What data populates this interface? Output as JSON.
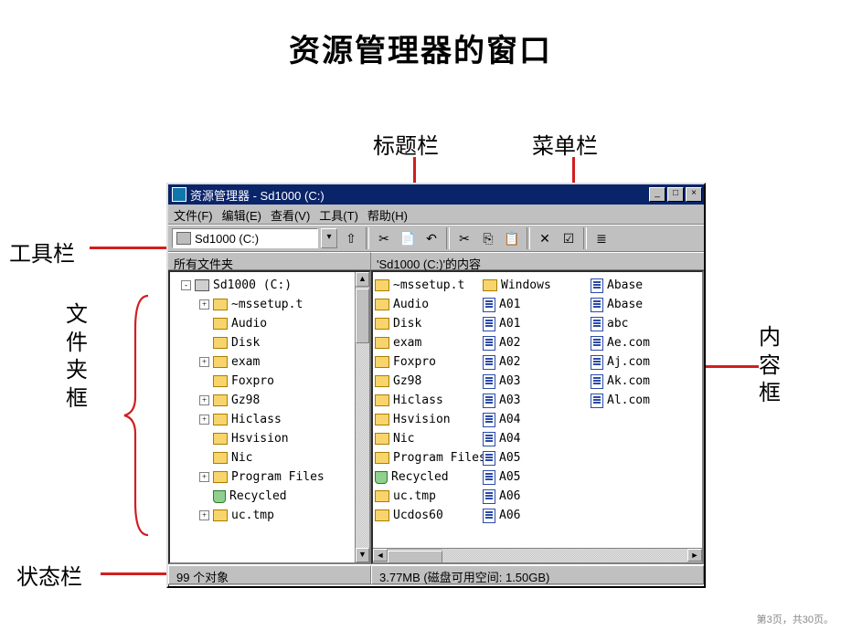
{
  "slide": {
    "title": "资源管理器的窗口",
    "footer": "第3页，共30页。"
  },
  "callouts": {
    "titlebar": "标题栏",
    "menubar": "菜单栏",
    "toolbar": "工具栏",
    "treepane": "文\n件\n夹\n框",
    "listpane": "内\n容\n框",
    "statusbar": "状态栏"
  },
  "window": {
    "title": "资源管理器 - Sd1000 (C:)",
    "sysbuttons": {
      "min": "_",
      "max": "□",
      "close": "×"
    },
    "menus": [
      "文件(F)",
      "编辑(E)",
      "查看(V)",
      "工具(T)",
      "帮助(H)"
    ],
    "address": "Sd1000 (C:)",
    "toolbar_icons": [
      "up",
      "sep",
      "cut0",
      "paste0",
      "undo0",
      "sep",
      "cut",
      "copy",
      "paste",
      "sep",
      "delete",
      "properties",
      "sep",
      "views"
    ],
    "pane_left_header": "所有文件夹",
    "pane_right_header": "'Sd1000 (C:)'的内容",
    "tree": [
      {
        "depth": 0,
        "pm": "-",
        "icon": "drive",
        "label": "Sd1000 (C:)"
      },
      {
        "depth": 1,
        "pm": "+",
        "icon": "folder",
        "label": "~mssetup.t"
      },
      {
        "depth": 1,
        "pm": "",
        "icon": "folder",
        "label": "Audio"
      },
      {
        "depth": 1,
        "pm": "",
        "icon": "folder",
        "label": "Disk"
      },
      {
        "depth": 1,
        "pm": "+",
        "icon": "folder",
        "label": "exam"
      },
      {
        "depth": 1,
        "pm": "",
        "icon": "folder",
        "label": "Foxpro"
      },
      {
        "depth": 1,
        "pm": "+",
        "icon": "folder",
        "label": "Gz98"
      },
      {
        "depth": 1,
        "pm": "+",
        "icon": "folder",
        "label": "Hiclass"
      },
      {
        "depth": 1,
        "pm": "",
        "icon": "folder",
        "label": "Hsvision"
      },
      {
        "depth": 1,
        "pm": "",
        "icon": "folder",
        "label": "Nic"
      },
      {
        "depth": 1,
        "pm": "+",
        "icon": "folder",
        "label": "Program Files"
      },
      {
        "depth": 1,
        "pm": "",
        "icon": "recycle",
        "label": "Recycled"
      },
      {
        "depth": 1,
        "pm": "+",
        "icon": "folder",
        "label": "uc.tmp"
      }
    ],
    "list": [
      {
        "icon": "folder",
        "label": "~mssetup.t"
      },
      {
        "icon": "folder",
        "label": "Audio"
      },
      {
        "icon": "folder",
        "label": "Disk"
      },
      {
        "icon": "folder",
        "label": "exam"
      },
      {
        "icon": "folder",
        "label": "Foxpro"
      },
      {
        "icon": "folder",
        "label": "Gz98"
      },
      {
        "icon": "folder",
        "label": "Hiclass"
      },
      {
        "icon": "folder",
        "label": "Hsvision"
      },
      {
        "icon": "folder",
        "label": "Nic"
      },
      {
        "icon": "folder",
        "label": "Program Files"
      },
      {
        "icon": "recycle",
        "label": "Recycled"
      },
      {
        "icon": "folder",
        "label": "uc.tmp"
      },
      {
        "icon": "folder",
        "label": "Ucdos60"
      },
      {
        "icon": "folder",
        "label": "Windows"
      },
      {
        "icon": "file",
        "label": "A01"
      },
      {
        "icon": "file",
        "label": "A01"
      },
      {
        "icon": "file",
        "label": "A02"
      },
      {
        "icon": "file",
        "label": "A02"
      },
      {
        "icon": "file",
        "label": "A03"
      },
      {
        "icon": "file",
        "label": "A03"
      },
      {
        "icon": "file",
        "label": "A04"
      },
      {
        "icon": "file",
        "label": "A04"
      },
      {
        "icon": "file",
        "label": "A05"
      },
      {
        "icon": "file",
        "label": "A05"
      },
      {
        "icon": "file",
        "label": "A06"
      },
      {
        "icon": "file",
        "label": "A06"
      },
      {
        "icon": "file",
        "label": "Abase"
      },
      {
        "icon": "file",
        "label": "Abase"
      },
      {
        "icon": "file",
        "label": "abc"
      },
      {
        "icon": "file",
        "label": "Ae.com"
      },
      {
        "icon": "file",
        "label": "Aj.com"
      },
      {
        "icon": "file",
        "label": "Ak.com"
      },
      {
        "icon": "file",
        "label": "Al.com"
      }
    ],
    "status_left": "99 个对象",
    "status_right": "3.77MB (磁盘可用空间: 1.50GB)"
  },
  "style": {
    "red": "#d21e1e",
    "win_bg": "#c0c0c0",
    "titlebar_bg": "#0a246a",
    "folder_color": "#f8d46c"
  }
}
